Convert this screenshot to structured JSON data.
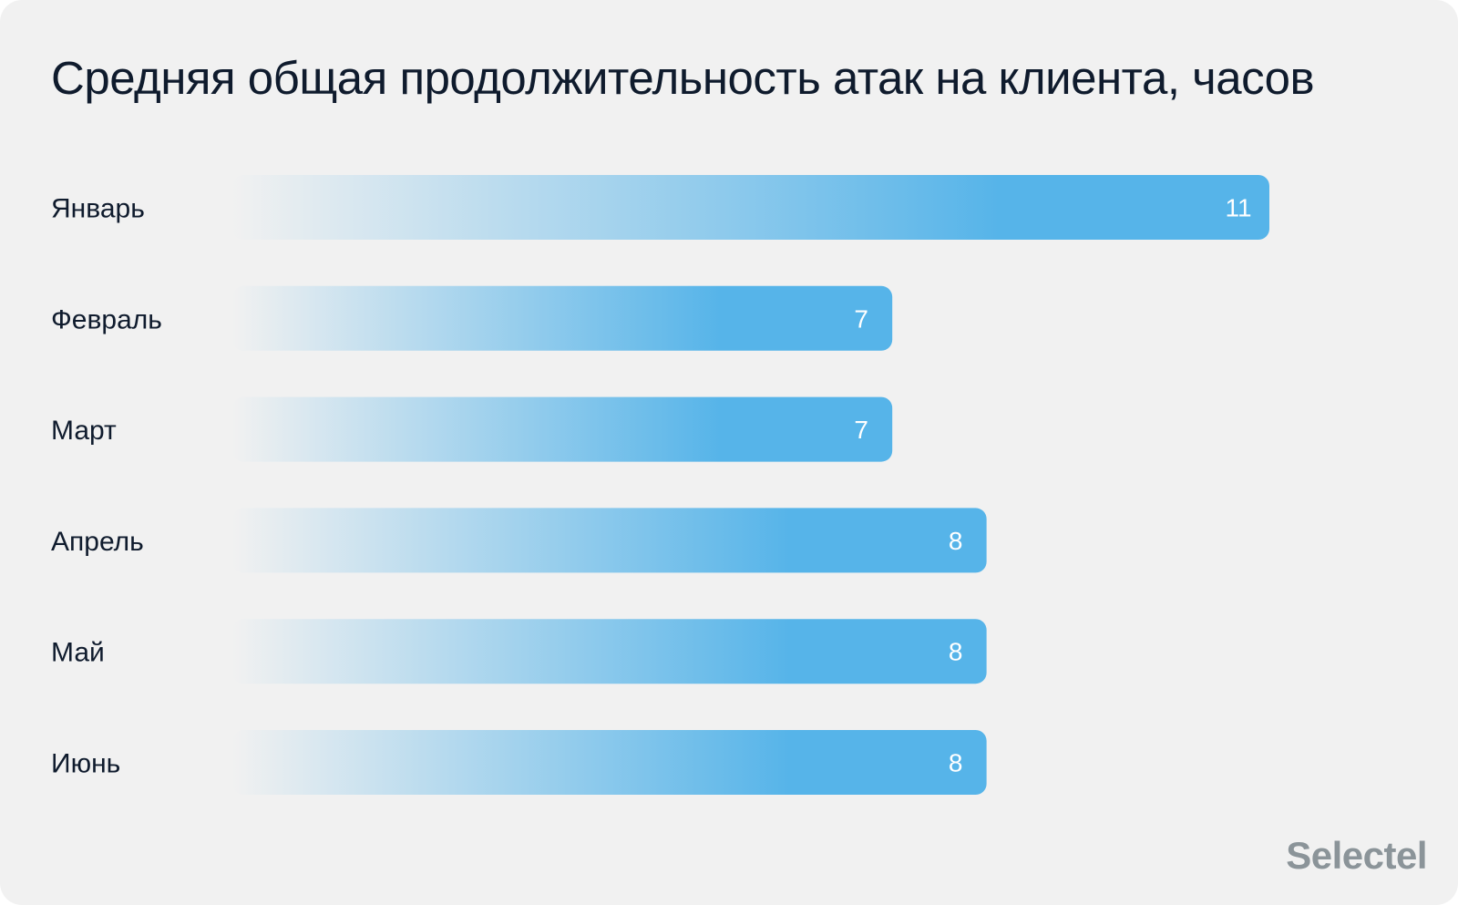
{
  "chart_data": {
    "type": "bar",
    "orientation": "horizontal",
    "title": "Средняя общая продолжительность атак на клиента, часов",
    "categories": [
      "Январь",
      "Февраль",
      "Март",
      "Апрель",
      "Май",
      "Июнь"
    ],
    "values": [
      11,
      7,
      7,
      8,
      8,
      8
    ],
    "xlabel": "",
    "ylabel": "",
    "xlim": [
      0,
      11
    ],
    "grid": false,
    "data_labels": true
  },
  "colors": {
    "bar_start": "#f1f1f1",
    "bar_end": "#56b4e9",
    "background": "#f1f1f1",
    "title": "#0f1b2d",
    "brand": "#8b9499"
  },
  "brand": {
    "logo_text": "Selectel"
  }
}
